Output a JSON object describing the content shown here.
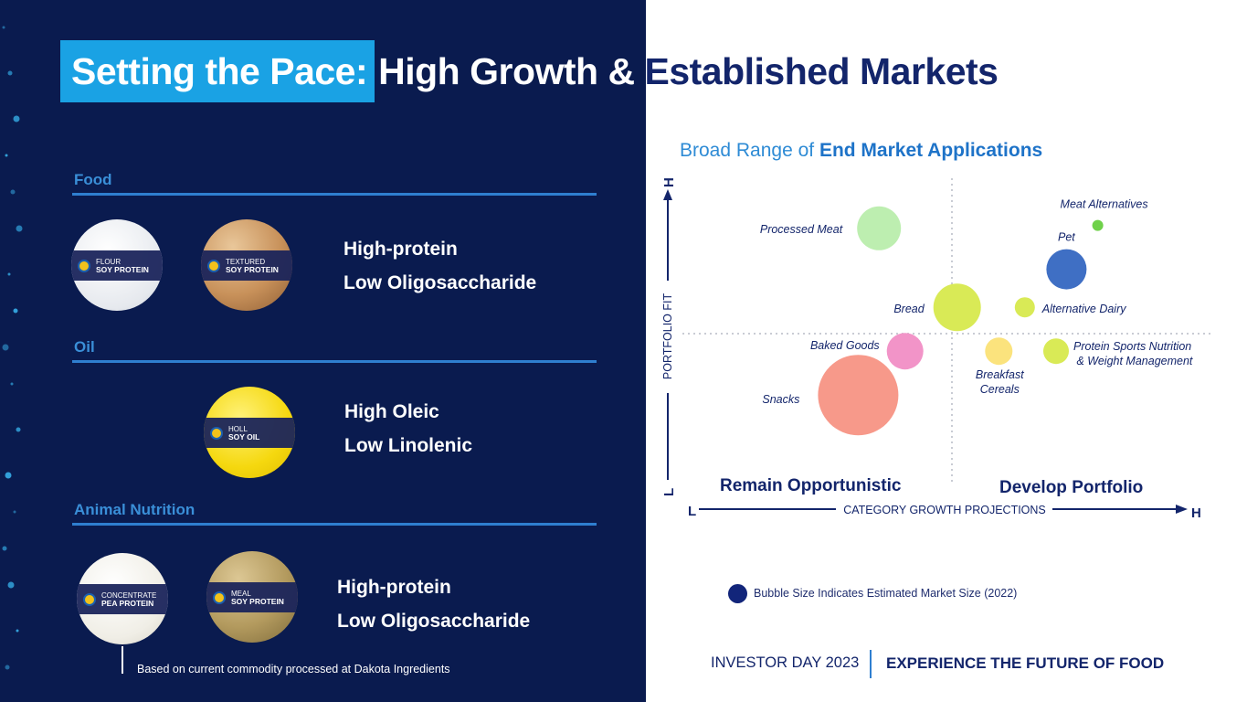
{
  "title": {
    "highlight": "Setting the Pace:",
    "rest": "High Growth & Established Markets"
  },
  "sections": {
    "food": {
      "label": "Food",
      "products": [
        {
          "line1": "FLOUR",
          "line2": "SOY PROTEIN"
        },
        {
          "line1": "TEXTURED",
          "line2": "SOY PROTEIN"
        }
      ],
      "bullets": [
        "High-protein",
        "Low Oligosaccharide"
      ]
    },
    "oil": {
      "label": "Oil",
      "products": [
        {
          "line1": "HOLL",
          "line2": "SOY OIL"
        }
      ],
      "bullets": [
        "High Oleic",
        "Low Linolenic"
      ]
    },
    "animal": {
      "label": "Animal Nutrition",
      "products": [
        {
          "line1": "CONCENTRATE",
          "line2": "PEA PROTEIN"
        },
        {
          "line1": "MEAL",
          "line2": "SOY PROTEIN"
        }
      ],
      "bullets": [
        "High-protein",
        "Low Oligosaccharide"
      ]
    }
  },
  "footnote": "Based on current commodity processed at Dakota Ingredients",
  "chart_title": {
    "part1": "Broad Range of ",
    "part2": "End Market Applications"
  },
  "quadrants": {
    "left": "Remain Opportunistic",
    "right": "Develop Portfolio"
  },
  "legend": "Bubble Size Indicates Estimated Market Size (2022)",
  "footer": {
    "left": "INVESTOR DAY 2023",
    "right": "EXPERIENCE THE FUTURE OF FOOD"
  },
  "colors": {
    "navy": "#0a1b4f",
    "accent_blue": "#1aa2e4",
    "dark_text": "#13256b"
  },
  "chart_data": {
    "type": "scatter",
    "variant": "bubble",
    "title": "Broad Range of End Market Applications",
    "xlabel": "CATEGORY GROWTH PROJECTIONS",
    "ylabel": "PORTFOLIO FIT",
    "x_axis_ends": [
      "L",
      "H"
    ],
    "y_axis_ends": [
      "L",
      "H"
    ],
    "xlim": [
      0,
      10
    ],
    "ylim": [
      0,
      10
    ],
    "dividers": {
      "x": 5,
      "y": 5
    },
    "points": [
      {
        "label": "Processed Meat",
        "x": 3.6,
        "y": 8.6,
        "size": 24,
        "color": "#bdeeb0"
      },
      {
        "label": "Meat Alternatives",
        "x": 7.8,
        "y": 8.7,
        "size": 6,
        "color": "#6fd14a"
      },
      {
        "label": "Pet",
        "x": 7.2,
        "y": 7.2,
        "size": 22,
        "color": "#3f6fc4"
      },
      {
        "label": "Bread",
        "x": 5.1,
        "y": 5.9,
        "size": 26,
        "color": "#d9ea56"
      },
      {
        "label": "Alternative Dairy",
        "x": 6.4,
        "y": 5.9,
        "size": 11,
        "color": "#d9ea56"
      },
      {
        "label": "Baked Goods",
        "x": 4.1,
        "y": 4.4,
        "size": 20,
        "color": "#f294c8"
      },
      {
        "label": "Breakfast Cereals",
        "x": 5.9,
        "y": 4.4,
        "size": 15,
        "color": "#fbe37d"
      },
      {
        "label": "Protein Sports Nutrition & Weight Management",
        "x": 7.0,
        "y": 4.4,
        "size": 14,
        "color": "#d9ea56"
      },
      {
        "label": "Snacks",
        "x": 3.2,
        "y": 2.9,
        "size": 44,
        "color": "#f7998a"
      }
    ],
    "legend": "Bubble Size Indicates Estimated Market Size (2022)"
  }
}
